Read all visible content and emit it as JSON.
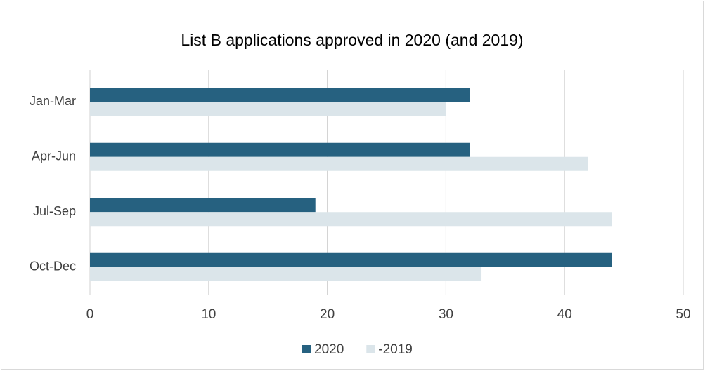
{
  "chart_data": {
    "type": "hbar",
    "title": "List B applications approved in 2020 (and 2019)",
    "categories": [
      "Jan-Mar",
      "Apr-Jun",
      "Jul-Sep",
      "Oct-Dec"
    ],
    "series": [
      {
        "name": "2020",
        "color": "#266180",
        "values": [
          32,
          32,
          19,
          44
        ]
      },
      {
        "name": "-2019",
        "color": "#dbe5ea",
        "values": [
          30,
          42,
          44,
          33
        ]
      }
    ],
    "xlim": [
      0,
      50
    ],
    "xticks": [
      0,
      10,
      20,
      30,
      40,
      50
    ],
    "grid": true,
    "legend": "bottom"
  }
}
